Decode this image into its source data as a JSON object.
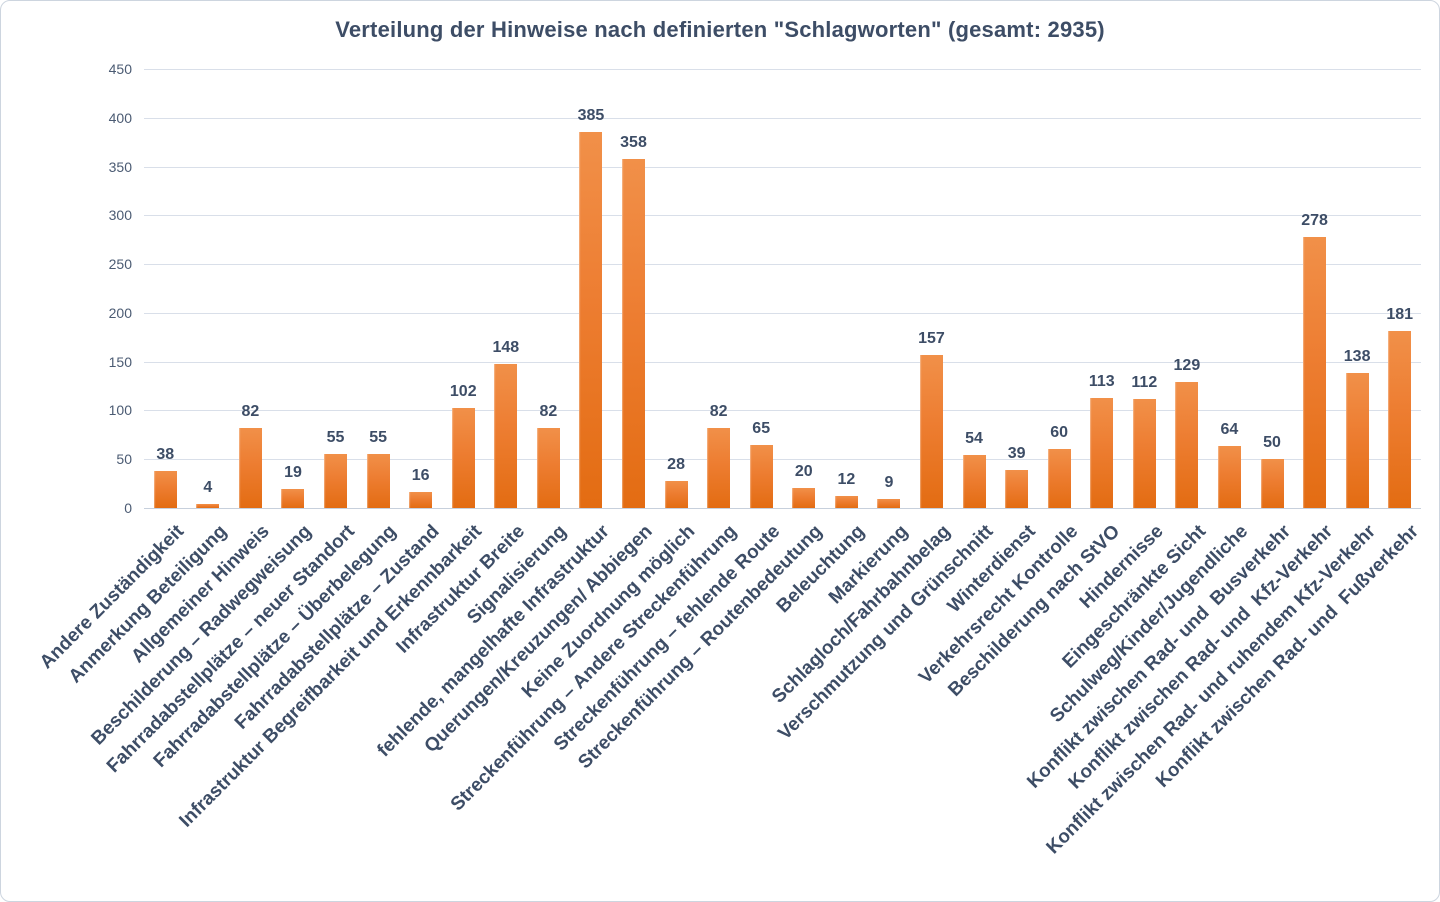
{
  "figure": {
    "background": "#ffffff",
    "border_color": "#cdd5df"
  },
  "chart_data": {
    "type": "bar",
    "title": "Verteilung der Hinweise nach definierten \"Schlagworten\" (gesamt: 2935)",
    "total": 2935,
    "categories": [
      "Andere Zuständigkeit",
      "Anmerkung Beteiligung",
      "Allgemeiner Hinweis",
      "Beschilderung – Radwegweisung",
      "Fahrradabstellplätze – neuer Standort",
      "Fahrradabstellplätze – Überbelegung",
      "Fahrradabstellplätze – Zustand",
      "Infrastruktur Begreifbarkeit und Erkennbarkeit",
      "Infrastruktur Breite",
      "Signalisierung",
      "fehlende, mangelhafte Infrastruktur",
      "Querungen/Kreuzungen/ Abbiegen",
      "Keine Zuordnung möglich",
      "Streckenführung – Andere Streckenführung",
      "Streckenführung – fehlende Route",
      "Streckenführung – Routenbedeutung",
      "Beleuchtung",
      "Markierung",
      "Schlagloch/Fahrbahnbelag",
      "Verschmutzung und Grünschnitt",
      "Winterdienst",
      "Verkehrsrecht Kontrolle",
      "Beschilderung nach StVO",
      "Hindernisse",
      "Eingeschränkte Sicht",
      "Schulweg/Kinder/Jugendliche",
      "Konflikt zwischen Rad- und  Busverkehr",
      "Konflikt zwischen Rad- und  Kfz-Verkehr",
      "Konflikt zwischen Rad- und ruhendem Kfz-Verkehr",
      "Konflikt zwischen Rad- und  Fußverkehr"
    ],
    "values": [
      38,
      4,
      82,
      19,
      55,
      55,
      16,
      102,
      148,
      82,
      385,
      358,
      28,
      82,
      65,
      20,
      12,
      9,
      157,
      54,
      39,
      60,
      113,
      112,
      129,
      64,
      50,
      278,
      138,
      181
    ],
    "xlabel": "",
    "ylabel": "",
    "ylim": [
      0,
      450
    ],
    "ytick_step": 50,
    "grid": "horizontal",
    "legend": "none",
    "bar_color": "#ed7d31",
    "bar_gradient_top": "#f19049",
    "bar_gradient_bottom": "#e36c12",
    "text_color": "#3d4d66",
    "gridline_color": "#d9dfe9"
  }
}
